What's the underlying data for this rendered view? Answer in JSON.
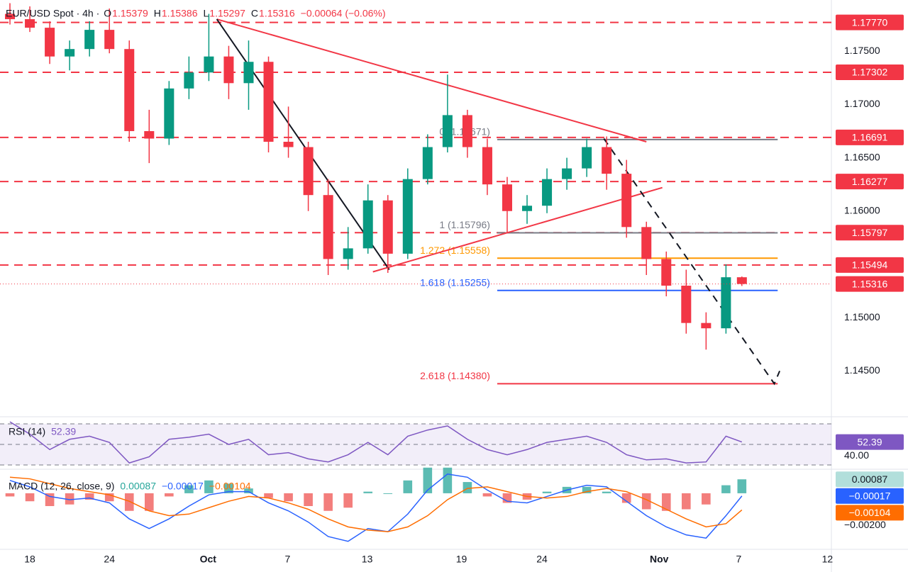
{
  "chart_data": [
    {
      "type": "candlestick",
      "title": "EUR/USD Spot · 4h ·",
      "ohlc_prefixes": [
        "O",
        "H",
        "L",
        "C"
      ],
      "change_label": "−0.00064 (−0.06%)",
      "x": [
        -1,
        0,
        1,
        2,
        3,
        4,
        5,
        6,
        7,
        8,
        9,
        10,
        11,
        12,
        13,
        14,
        15,
        16,
        17,
        18,
        19,
        20,
        21,
        22,
        23,
        24,
        25,
        26,
        27,
        28,
        29,
        30,
        31,
        32,
        33,
        34,
        35,
        35.8
      ],
      "open": [
        1.1785,
        1.178,
        1.1772,
        1.1745,
        1.1752,
        1.177,
        1.1752,
        1.1675,
        1.1668,
        1.1715,
        1.173,
        1.1745,
        1.172,
        1.174,
        1.1665,
        1.166,
        1.1615,
        1.1555,
        1.1565,
        1.161,
        1.156,
        1.163,
        1.166,
        1.169,
        1.166,
        1.1625,
        1.16,
        1.1605,
        1.163,
        1.164,
        1.166,
        1.1635,
        1.1585,
        1.1555,
        1.153,
        1.1495,
        1.149,
        1.15379
      ],
      "high": [
        1.1795,
        1.1792,
        1.1778,
        1.176,
        1.1778,
        1.179,
        1.176,
        1.1695,
        1.1722,
        1.1745,
        1.1785,
        1.1755,
        1.176,
        1.1745,
        1.1698,
        1.1665,
        1.163,
        1.1585,
        1.1625,
        1.1615,
        1.164,
        1.1672,
        1.1728,
        1.1695,
        1.1668,
        1.1632,
        1.1615,
        1.164,
        1.165,
        1.1668,
        1.167,
        1.1648,
        1.159,
        1.1562,
        1.1545,
        1.1505,
        1.155,
        1.15386
      ],
      "low": [
        1.1775,
        1.1768,
        1.1738,
        1.1732,
        1.1745,
        1.1748,
        1.1665,
        1.1645,
        1.1662,
        1.1705,
        1.1722,
        1.1705,
        1.1695,
        1.1655,
        1.165,
        1.16,
        1.154,
        1.1545,
        1.156,
        1.1542,
        1.1555,
        1.1625,
        1.1655,
        1.165,
        1.1615,
        1.158,
        1.1588,
        1.1598,
        1.162,
        1.1632,
        1.162,
        1.1575,
        1.154,
        1.152,
        1.1485,
        1.147,
        1.1485,
        1.15297
      ],
      "close": [
        1.178,
        1.1772,
        1.1745,
        1.1752,
        1.177,
        1.1752,
        1.1675,
        1.1668,
        1.1715,
        1.173,
        1.1745,
        1.172,
        1.174,
        1.1665,
        1.166,
        1.1615,
        1.1555,
        1.1565,
        1.161,
        1.156,
        1.163,
        1.166,
        1.169,
        1.166,
        1.1625,
        1.16,
        1.1605,
        1.163,
        1.164,
        1.166,
        1.1635,
        1.1585,
        1.1555,
        1.153,
        1.1495,
        1.149,
        1.15379,
        1.15316
      ],
      "up_color": "#089981",
      "down_color": "#f23645",
      "xlim": [
        -1.5,
        40.3
      ],
      "ylim": [
        1.1407,
        1.1798
      ],
      "xticks": [
        {
          "value": 0,
          "label": "18"
        },
        {
          "value": 4,
          "label": "24"
        },
        {
          "value": 8.96,
          "label": "Oct"
        },
        {
          "value": 12.96,
          "label": "7"
        },
        {
          "value": 16.96,
          "label": "13"
        },
        {
          "value": 21.7,
          "label": "19"
        },
        {
          "value": 25.75,
          "label": "24"
        },
        {
          "value": 31.64,
          "label": "Nov"
        },
        {
          "value": 35.64,
          "label": "7"
        },
        {
          "value": 40.1,
          "label": "12"
        }
      ],
      "yticks": [
        {
          "value": 1.145,
          "label": "1.14500"
        },
        {
          "value": 1.15,
          "label": "1.15000"
        },
        {
          "value": 1.155,
          "label": "1.15500"
        },
        {
          "value": 1.16,
          "label": "1.16000"
        },
        {
          "value": 1.165,
          "label": "1.16500"
        },
        {
          "value": 1.17,
          "label": "1.17000"
        },
        {
          "value": 1.175,
          "label": "1.17500"
        }
      ],
      "grid": false,
      "level_color": "#f23645",
      "levels": [
        {
          "value": 1.1777,
          "label": "1.17770"
        },
        {
          "value": 1.17302,
          "label": "1.17302"
        },
        {
          "value": 1.16691,
          "label": "1.16691"
        },
        {
          "value": 1.16277,
          "label": "1.16277"
        },
        {
          "value": 1.15797,
          "label": "1.15797"
        },
        {
          "value": 1.15494,
          "label": "1.15494"
        }
      ],
      "fib_range_x": [
        23.5,
        37.6
      ],
      "fib": [
        {
          "value": 1.16671,
          "label": "0 (1.16671)",
          "color": "#787b86"
        },
        {
          "value": 1.15796,
          "label": "1 (1.15796)",
          "color": "#787b86"
        },
        {
          "value": 1.15558,
          "label": "1.272 (1.15558)",
          "color": "#ff9800"
        },
        {
          "value": 1.15255,
          "label": "1.618 (1.15255)",
          "color": "#2962ff"
        },
        {
          "value": 1.1438,
          "label": "2.618 (1.14380)",
          "color": "#f23645"
        }
      ],
      "trendlines": [
        {
          "points": [
            [
              9.4,
              1.178
            ],
            [
              31.0,
              1.1665
            ]
          ],
          "color": "#f23645",
          "dashed": false
        },
        {
          "points": [
            [
              17.25,
              1.1543
            ],
            [
              31.8,
              1.1622
            ]
          ],
          "color": "#f23645",
          "dashed": false
        },
        {
          "points": [
            [
              9.4,
              1.178
            ],
            [
              18.07,
              1.1545
            ]
          ],
          "color": "#131722",
          "dashed": false
        },
        {
          "points": [
            [
              28.86,
              1.1668
            ],
            [
              37.43,
              1.1438
            ],
            [
              37.7,
              1.145
            ]
          ],
          "color": "#131722",
          "dashed": true
        }
      ]
    },
    {
      "type": "rsi",
      "title": "RSI (14)",
      "color": "#7e57c2",
      "values": [
        72,
        60,
        45,
        55,
        58,
        52,
        32,
        38,
        55,
        57,
        60,
        50,
        55,
        40,
        42,
        36,
        33,
        40,
        52,
        40,
        58,
        64,
        68,
        55,
        45,
        40,
        45,
        52,
        55,
        58,
        52,
        40,
        35,
        36,
        32,
        33,
        58,
        52.39
      ],
      "ylim": [
        25.9,
        76.9
      ],
      "yticks": [
        {
          "value": 40,
          "label": "40.00"
        }
      ],
      "bands": [
        70,
        50,
        30
      ]
    },
    {
      "type": "macd",
      "title": "MACD (12, 26, close, 9)",
      "ylim": [
        -0.0035,
        0.0015
      ],
      "yticks": [
        {
          "value": -0.002,
          "label": "−0.00200"
        }
      ],
      "histogram": {
        "values": [
          -0.0002,
          -0.0005,
          -0.0008,
          -0.0007,
          -0.0004,
          -0.0005,
          -0.0011,
          -0.0011,
          -0.0002,
          0.0005,
          0.0008,
          0.0006,
          0.0003,
          -0.0003,
          -0.0005,
          -0.0008,
          -0.0011,
          -0.0009,
          0.0001,
          0,
          0.0008,
          0.0016,
          0.0016,
          0.0007,
          -0.0002,
          -0.0006,
          -0.0004,
          0.0001,
          0.0004,
          0.0004,
          0.0001,
          -0.0006,
          -0.001,
          -0.0011,
          -0.001,
          -0.0007,
          0.0005,
          0.00087
        ],
        "last_label": "0.00087",
        "color_up": "#26a69a",
        "color_down": "#ef5350"
      },
      "macd": {
        "values": [
          0.0008,
          0.0004,
          -0.0002,
          -0.0004,
          -0.0003,
          -0.0006,
          -0.0016,
          -0.0022,
          -0.0016,
          -0.0008,
          -0.0001,
          0.0001,
          0.0001,
          -0.0006,
          -0.0011,
          -0.0018,
          -0.0027,
          -0.003,
          -0.0022,
          -0.0024,
          -0.0013,
          0.0002,
          0.0012,
          0.001,
          0.0002,
          -0.0005,
          -0.0006,
          -0.0002,
          0.0002,
          0.0005,
          0.0004,
          -0.0005,
          -0.0014,
          -0.0021,
          -0.0026,
          -0.0028,
          -0.0014,
          -0.00017
        ],
        "last_label": "−0.00017",
        "color": "#2962ff"
      },
      "signal": {
        "values": [
          0.001,
          0.0009,
          0.0006,
          0.0003,
          0.0001,
          -0.0001,
          -0.0005,
          -0.0011,
          -0.0014,
          -0.0013,
          -0.0009,
          -0.0005,
          -0.0002,
          -0.0003,
          -0.0006,
          -0.001,
          -0.0016,
          -0.0021,
          -0.0023,
          -0.0024,
          -0.0021,
          -0.0014,
          -0.0004,
          0.0003,
          0.0004,
          0.0001,
          -0.0002,
          -0.0003,
          -0.0002,
          0.0001,
          0.0003,
          0.0001,
          -0.0004,
          -0.001,
          -0.0016,
          -0.0021,
          -0.0019,
          -0.00104
        ],
        "last_label": "−0.00104",
        "color": "#ff6d00"
      }
    }
  ]
}
